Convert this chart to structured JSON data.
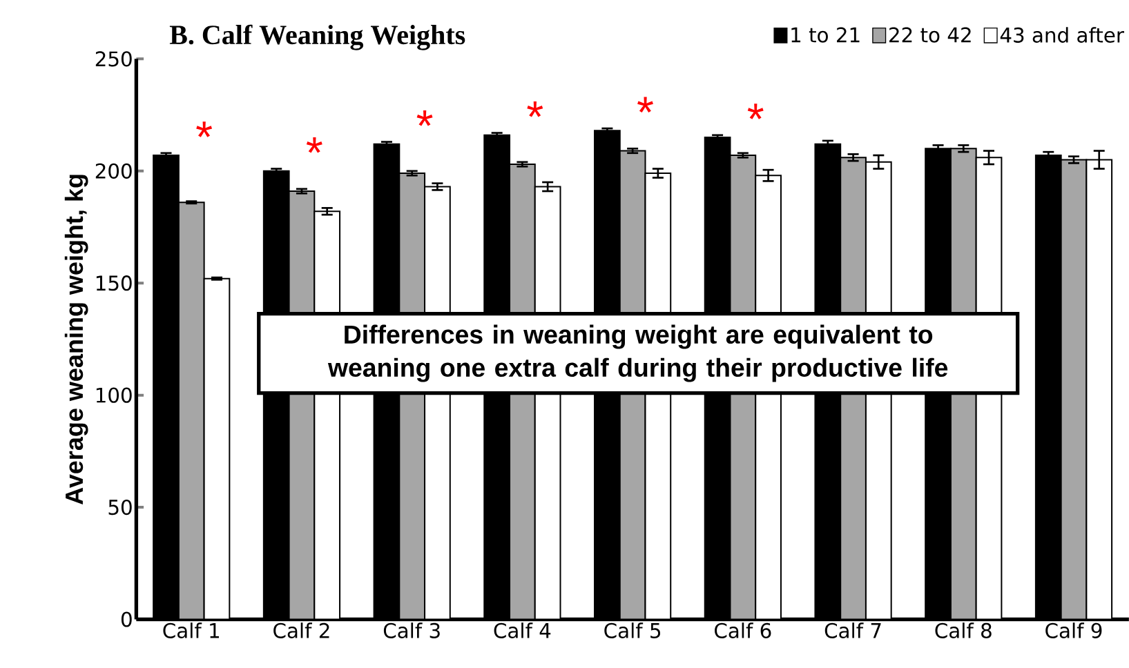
{
  "chart_data": {
    "type": "bar",
    "title": "B. Calf Weaning Weights",
    "ylabel": "Average weaning weight, kg",
    "categories": [
      "Calf 1",
      "Calf 2",
      "Calf 3",
      "Calf 4",
      "Calf 5",
      "Calf 6",
      "Calf 7",
      "Calf 8",
      "Calf 9"
    ],
    "series": [
      {
        "name": "1 to 21",
        "color": "#000000",
        "values": [
          207,
          200,
          212,
          216,
          218,
          215,
          212,
          210,
          207
        ],
        "errors": [
          1,
          1,
          1,
          1,
          1,
          1,
          1.5,
          1.5,
          1.5
        ]
      },
      {
        "name": "22 to 42",
        "color": "#a6a6a6",
        "values": [
          186,
          191,
          199,
          203,
          209,
          207,
          206,
          210,
          205
        ],
        "errors": [
          0.5,
          1,
          1,
          1,
          1,
          1,
          1.5,
          1.5,
          1.5
        ]
      },
      {
        "name": "43 and after",
        "color": "#ffffff",
        "values": [
          152,
          182,
          193,
          193,
          199,
          198,
          204,
          206,
          205
        ],
        "errors": [
          0.5,
          1.5,
          1.5,
          2,
          2,
          2.5,
          3,
          3,
          4
        ]
      }
    ],
    "ylim": [
      0,
      250
    ],
    "yticks": [
      0,
      50,
      100,
      150,
      200,
      250
    ],
    "grid": false,
    "legend": "top right",
    "annotations": [
      "Differences in weaning weight are equivalent to weaning one extra calf during their productive life",
      "*",
      "*",
      "*",
      "*",
      "*",
      "*"
    ]
  }
}
